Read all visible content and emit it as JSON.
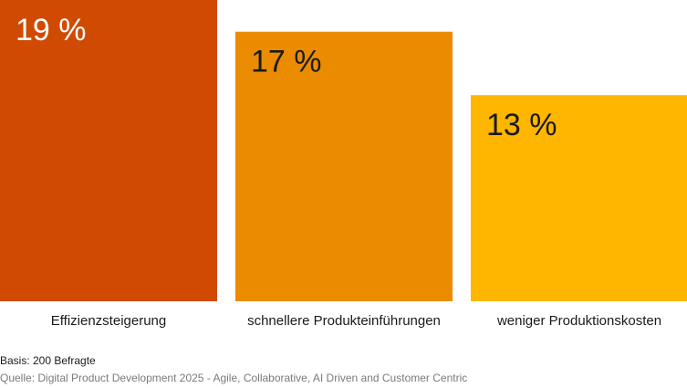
{
  "chart_data": {
    "type": "bar",
    "categories": [
      "Effizienzsteigerung",
      "schnellere Produkteinführungen",
      "weniger Produktionskosten"
    ],
    "values": [
      19,
      17,
      13
    ],
    "value_labels": [
      "19 %",
      "17 %",
      "13 %"
    ],
    "unit": "%",
    "ylim": [
      0,
      19
    ],
    "grid": false,
    "legend": "none",
    "colors": [
      "#d04a02",
      "#eb8c00",
      "#ffb600"
    ],
    "value_label_colors": [
      "#ffffff",
      "#1a1a1a",
      "#1a1a1a"
    ]
  },
  "footer": {
    "basis": "Basis: 200 Befragte",
    "source": "Quelle: Digital Product Development 2025 - Agile, Collaborative, AI Driven and Customer Centric"
  }
}
